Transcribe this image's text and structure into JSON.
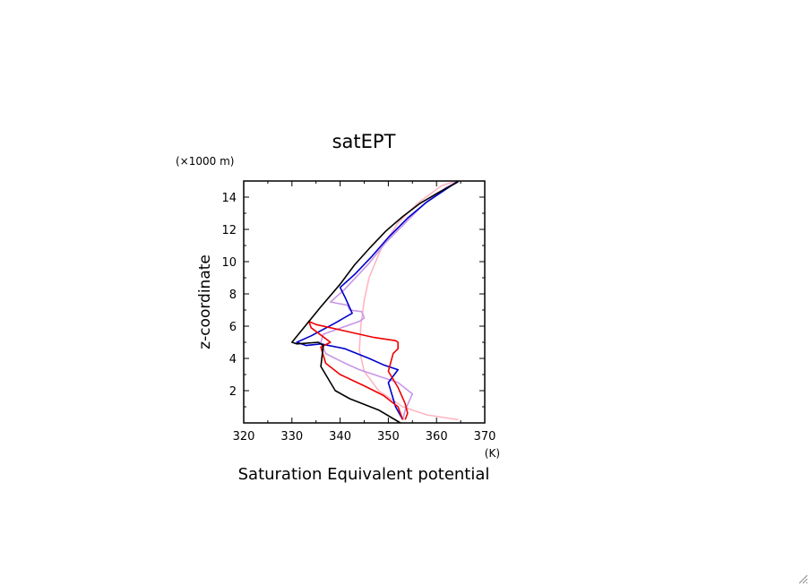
{
  "chart_data": {
    "type": "line",
    "title": "satEPT",
    "xlabel": "Saturation Equivalent potential",
    "xunit": "(K)",
    "ylabel": "z-coordinate",
    "yunit": "(×1000 m)",
    "xlim": [
      320,
      370
    ],
    "ylim": [
      0,
      15
    ],
    "xticks": [
      "320",
      "330",
      "340",
      "350",
      "360",
      "370"
    ],
    "yticks": [
      "2",
      "4",
      "6",
      "8",
      "10",
      "12",
      "14"
    ],
    "grid": false,
    "legend": "none",
    "series": [
      {
        "color": "#ffb6c1",
        "points": [
          [
            364.5,
            0.2
          ],
          [
            358,
            0.5
          ],
          [
            353,
            1.0
          ],
          [
            348,
            2.0
          ],
          [
            345,
            3.2
          ],
          [
            344,
            4.5
          ],
          [
            344.3,
            6.0
          ],
          [
            345,
            7.6
          ],
          [
            346,
            9.0
          ],
          [
            348.5,
            10.8
          ],
          [
            352,
            12.4
          ],
          [
            356,
            13.6
          ],
          [
            361,
            14.7
          ],
          [
            364,
            15.0
          ]
        ]
      },
      {
        "color": "#c896e6",
        "points": [
          [
            353,
            0.2
          ],
          [
            353.5,
            0.8
          ],
          [
            355,
            1.8
          ],
          [
            352,
            2.5
          ],
          [
            347,
            3.0
          ],
          [
            344,
            3.3
          ],
          [
            341,
            3.7
          ],
          [
            337,
            4.3
          ],
          [
            336,
            5.0
          ],
          [
            336.5,
            5.5
          ],
          [
            344,
            6.3
          ],
          [
            345,
            6.5
          ],
          [
            344.5,
            6.9
          ],
          [
            342,
            7.0
          ],
          [
            341.5,
            7.3
          ],
          [
            338,
            7.5
          ],
          [
            341,
            8.3
          ],
          [
            346,
            9.9
          ],
          [
            349.5,
            11.2
          ],
          [
            353.5,
            12.4
          ],
          [
            357.5,
            13.6
          ],
          [
            362,
            14.6
          ],
          [
            364.5,
            15.0
          ]
        ]
      },
      {
        "color": "#0000cc",
        "points": [
          [
            353,
            0.2
          ],
          [
            351.5,
            1.0
          ],
          [
            350,
            2.5
          ],
          [
            352,
            3.3
          ],
          [
            349,
            3.6
          ],
          [
            346,
            4.0
          ],
          [
            341,
            4.6
          ],
          [
            336,
            4.9
          ],
          [
            333,
            4.8
          ],
          [
            331,
            5.0
          ],
          [
            334,
            5.4
          ],
          [
            339,
            6.2
          ],
          [
            342.5,
            6.8
          ],
          [
            341,
            7.8
          ],
          [
            340,
            8.4
          ],
          [
            343,
            9.2
          ],
          [
            346.5,
            10.3
          ],
          [
            350,
            11.5
          ],
          [
            354,
            12.7
          ],
          [
            358,
            13.7
          ],
          [
            362,
            14.5
          ],
          [
            364.5,
            15.0
          ]
        ]
      },
      {
        "color": "#ee0000",
        "points": [
          [
            353.5,
            0.2
          ],
          [
            354,
            0.6
          ],
          [
            353.5,
            1.2
          ],
          [
            352,
            2.2
          ],
          [
            350,
            3.2
          ],
          [
            351,
            4.3
          ],
          [
            352,
            4.6
          ],
          [
            352,
            5.0
          ],
          [
            351.5,
            5.1
          ],
          [
            347,
            5.3
          ],
          [
            341,
            5.7
          ],
          [
            335,
            6.1
          ],
          [
            333.5,
            6.3
          ],
          [
            334,
            5.9
          ],
          [
            338,
            5.0
          ],
          [
            336,
            4.7
          ],
          [
            337,
            3.7
          ],
          [
            340,
            3.0
          ],
          [
            345,
            2.3
          ],
          [
            349,
            1.7
          ],
          [
            352,
            1.0
          ],
          [
            353,
            0.2
          ]
        ]
      },
      {
        "color": "#000000",
        "points": [
          [
            352.5,
            0.0
          ],
          [
            348,
            0.8
          ],
          [
            342,
            1.5
          ],
          [
            339,
            2.0
          ],
          [
            336,
            3.5
          ],
          [
            336.5,
            4.8
          ],
          [
            335.5,
            5.0
          ],
          [
            331,
            4.9
          ],
          [
            330,
            5.0
          ],
          [
            336,
            7.2
          ],
          [
            340,
            8.6
          ],
          [
            343,
            9.8
          ],
          [
            346,
            10.8
          ],
          [
            349.5,
            11.9
          ],
          [
            353,
            12.8
          ],
          [
            356.5,
            13.6
          ],
          [
            360.5,
            14.3
          ],
          [
            364.5,
            14.95
          ]
        ]
      }
    ]
  }
}
